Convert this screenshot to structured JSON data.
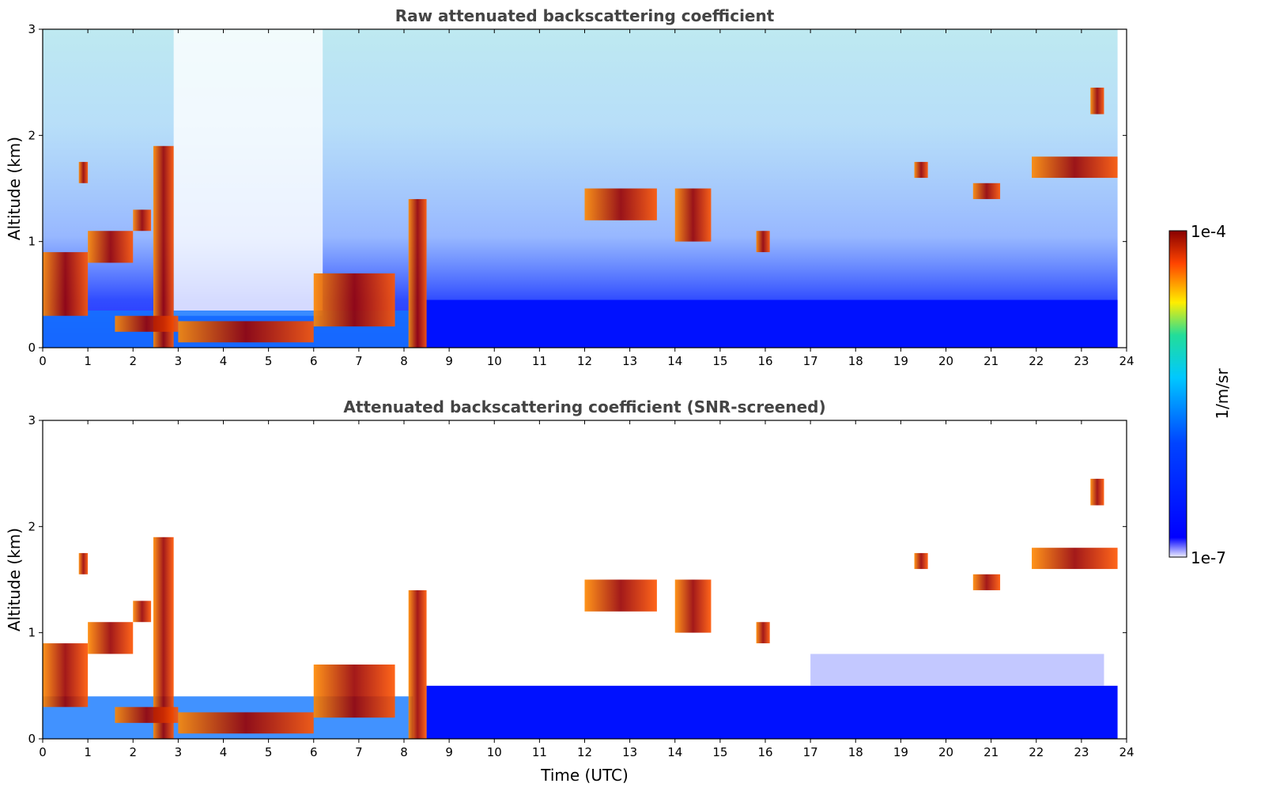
{
  "chart_data": {
    "type": "heatmap",
    "description_free": true,
    "x_axis": {
      "label": "Time (UTC)",
      "range": [
        0,
        24
      ],
      "ticks": [
        0,
        1,
        2,
        3,
        4,
        5,
        6,
        7,
        8,
        9,
        10,
        11,
        12,
        13,
        14,
        15,
        16,
        17,
        18,
        19,
        20,
        21,
        22,
        23,
        24
      ]
    },
    "y_axis": {
      "label": "Altitude (km)",
      "range": [
        0,
        3
      ],
      "ticks": [
        0,
        1,
        2,
        3
      ]
    },
    "colorbar": {
      "label": "1/m/sr",
      "min_label": "1e-7",
      "max_label": "1e-4",
      "scale": "log",
      "colors": [
        "#eeeeff",
        "#0000ff",
        "#00c8ff",
        "#ffee00",
        "#ff4400",
        "#880000"
      ]
    },
    "panels": [
      {
        "title": "Raw attenuated backscattering coefficient",
        "cloud_layers": [
          {
            "x0": 0.0,
            "x1": 1.0,
            "y0": 0.3,
            "y1": 0.9
          },
          {
            "x0": 1.0,
            "x1": 2.0,
            "y0": 0.8,
            "y1": 1.1
          },
          {
            "x0": 0.8,
            "x1": 1.0,
            "y0": 1.55,
            "y1": 1.75
          },
          {
            "x0": 2.0,
            "x1": 2.4,
            "y0": 1.1,
            "y1": 1.3
          },
          {
            "x0": 2.45,
            "x1": 2.9,
            "y0": 0.0,
            "y1": 1.9
          },
          {
            "x0": 1.6,
            "x1": 3.0,
            "y0": 0.15,
            "y1": 0.3
          },
          {
            "x0": 3.0,
            "x1": 6.0,
            "y0": 0.05,
            "y1": 0.25
          },
          {
            "x0": 6.0,
            "x1": 7.8,
            "y0": 0.2,
            "y1": 0.7
          },
          {
            "x0": 8.1,
            "x1": 8.5,
            "y0": 0.0,
            "y1": 1.4
          },
          {
            "x0": 12.0,
            "x1": 13.6,
            "y0": 1.2,
            "y1": 1.5
          },
          {
            "x0": 14.0,
            "x1": 14.8,
            "y0": 1.0,
            "y1": 1.5
          },
          {
            "x0": 15.8,
            "x1": 16.1,
            "y0": 0.9,
            "y1": 1.1
          },
          {
            "x0": 19.3,
            "x1": 19.6,
            "y0": 1.6,
            "y1": 1.75
          },
          {
            "x0": 20.6,
            "x1": 21.2,
            "y0": 1.4,
            "y1": 1.55
          },
          {
            "x0": 21.9,
            "x1": 23.8,
            "y0": 1.6,
            "y1": 1.8
          },
          {
            "x0": 23.2,
            "x1": 23.5,
            "y0": 2.2,
            "y1": 2.45
          }
        ]
      },
      {
        "title": "Attenuated backscattering coefficient (SNR-screened)",
        "cloud_layers": [
          {
            "x0": 0.0,
            "x1": 1.0,
            "y0": 0.3,
            "y1": 0.9
          },
          {
            "x0": 1.0,
            "x1": 2.0,
            "y0": 0.8,
            "y1": 1.1
          },
          {
            "x0": 0.8,
            "x1": 1.0,
            "y0": 1.55,
            "y1": 1.75
          },
          {
            "x0": 2.0,
            "x1": 2.4,
            "y0": 1.1,
            "y1": 1.3
          },
          {
            "x0": 2.45,
            "x1": 2.9,
            "y0": 0.0,
            "y1": 1.9
          },
          {
            "x0": 1.6,
            "x1": 3.0,
            "y0": 0.15,
            "y1": 0.3
          },
          {
            "x0": 3.0,
            "x1": 6.0,
            "y0": 0.05,
            "y1": 0.25
          },
          {
            "x0": 6.0,
            "x1": 7.8,
            "y0": 0.2,
            "y1": 0.7
          },
          {
            "x0": 8.1,
            "x1": 8.5,
            "y0": 0.0,
            "y1": 1.4
          },
          {
            "x0": 12.0,
            "x1": 13.6,
            "y0": 1.2,
            "y1": 1.5
          },
          {
            "x0": 14.0,
            "x1": 14.8,
            "y0": 1.0,
            "y1": 1.5
          },
          {
            "x0": 15.8,
            "x1": 16.1,
            "y0": 0.9,
            "y1": 1.1
          },
          {
            "x0": 19.3,
            "x1": 19.6,
            "y0": 1.6,
            "y1": 1.75
          },
          {
            "x0": 20.6,
            "x1": 21.2,
            "y0": 1.4,
            "y1": 1.55
          },
          {
            "x0": 21.9,
            "x1": 23.8,
            "y0": 1.6,
            "y1": 1.8
          },
          {
            "x0": 23.2,
            "x1": 23.5,
            "y0": 2.2,
            "y1": 2.45
          }
        ]
      }
    ]
  }
}
